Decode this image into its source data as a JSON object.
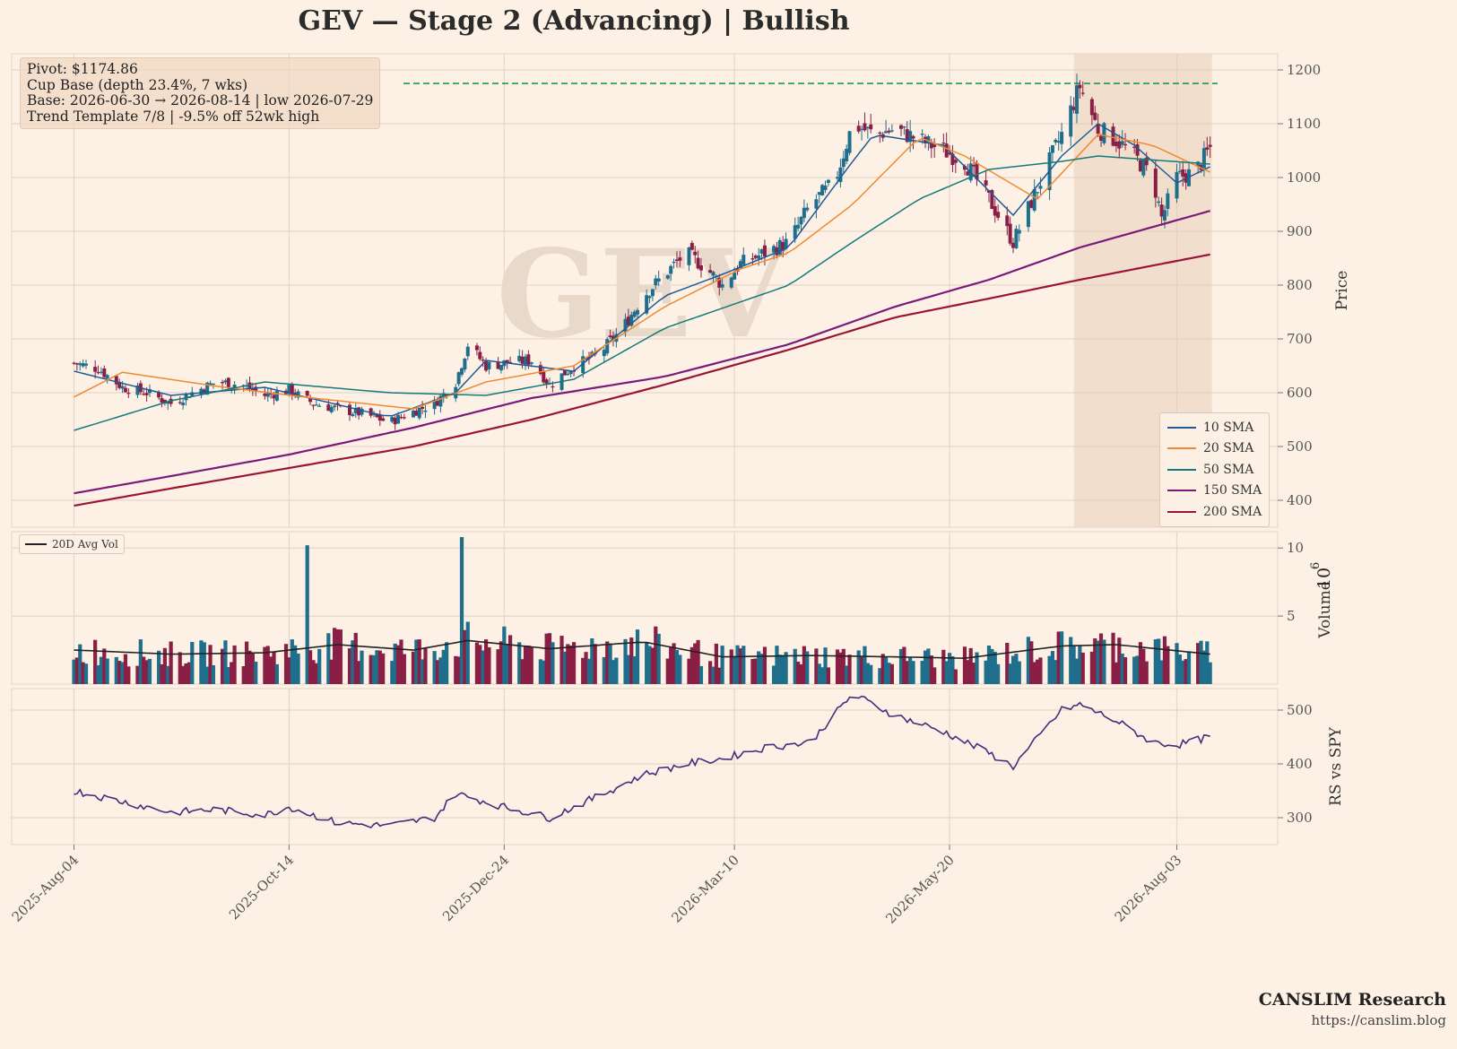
{
  "title": "GEV  —  Stage 2 (Advancing)  |  Bullish",
  "watermark": "GEV",
  "annotation": {
    "pivot": "Pivot: $1174.86",
    "base_type": "Cup Base  (depth 23.4%, 7 wks)",
    "base_dates": "Base: 2026-06-30 → 2026-08-14  |  low 2026-07-29",
    "trend": "Trend Template 7/8  |  -9.5% off 52wk high"
  },
  "branding": {
    "name": "CANSLIM Research",
    "url": "https://canslim.blog"
  },
  "colors": {
    "up": "#1f6e8c",
    "down": "#8a1f45",
    "pivot": "#1a9a4a",
    "base_shade": "#e8cdb8"
  },
  "chart_data": [
    {
      "type": "candlestick",
      "ylabel": "Price",
      "ylim": [
        350,
        1230
      ],
      "yticks": [
        400,
        500,
        600,
        700,
        800,
        900,
        1000,
        1100,
        1200
      ],
      "xticks": [
        "2025-Aug-04",
        "2025-Oct-14",
        "2025-Dec-24",
        "2026-Mar-10",
        "2026-May-20",
        "2026-Aug-03"
      ],
      "pivot": 1174.86,
      "base_shade_dates": [
        "2026-06-30",
        "2026-08-14"
      ],
      "close_anchors": [
        [
          "2025-08-04",
          655
        ],
        [
          "2025-08-12",
          645
        ],
        [
          "2025-08-20",
          610
        ],
        [
          "2025-08-28",
          600
        ],
        [
          "2025-09-05",
          580
        ],
        [
          "2025-09-12",
          600
        ],
        [
          "2025-09-20",
          620
        ],
        [
          "2025-09-28",
          615
        ],
        [
          "2025-10-06",
          595
        ],
        [
          "2025-10-14",
          605
        ],
        [
          "2025-10-22",
          580
        ],
        [
          "2025-10-30",
          570
        ],
        [
          "2025-11-08",
          560
        ],
        [
          "2025-11-16",
          545
        ],
        [
          "2025-11-24",
          565
        ],
        [
          "2025-12-01",
          580
        ],
        [
          "2025-12-08",
          620
        ],
        [
          "2025-12-12",
          690
        ],
        [
          "2025-12-18",
          650
        ],
        [
          "2025-12-24",
          655
        ],
        [
          "2026-01-02",
          660
        ],
        [
          "2026-01-08",
          615
        ],
        [
          "2026-01-16",
          650
        ],
        [
          "2026-01-24",
          670
        ],
        [
          "2026-02-01",
          720
        ],
        [
          "2026-02-08",
          780
        ],
        [
          "2026-02-15",
          820
        ],
        [
          "2026-02-22",
          860
        ],
        [
          "2026-03-01",
          830
        ],
        [
          "2026-03-06",
          800
        ],
        [
          "2026-03-12",
          840
        ],
        [
          "2026-03-20",
          860
        ],
        [
          "2026-03-28",
          880
        ],
        [
          "2026-04-04",
          950
        ],
        [
          "2026-04-12",
          990
        ],
        [
          "2026-04-18",
          1100
        ],
        [
          "2026-04-25",
          1080
        ],
        [
          "2026-05-02",
          1090
        ],
        [
          "2026-05-10",
          1070
        ],
        [
          "2026-05-18",
          1050
        ],
        [
          "2026-05-25",
          1030
        ],
        [
          "2026-06-02",
          960
        ],
        [
          "2026-06-10",
          880
        ],
        [
          "2026-06-18",
          980
        ],
        [
          "2026-06-26",
          1080
        ],
        [
          "2026-07-02",
          1170
        ],
        [
          "2026-07-08",
          1090
        ],
        [
          "2026-07-14",
          1070
        ],
        [
          "2026-07-20",
          1040
        ],
        [
          "2026-07-26",
          1000
        ],
        [
          "2026-07-29",
          925
        ],
        [
          "2026-08-03",
          1000
        ],
        [
          "2026-08-09",
          1010
        ],
        [
          "2026-08-14",
          1055
        ]
      ],
      "sma": [
        {
          "name": "10 SMA",
          "color": "#1f5a96",
          "points": [
            [
              "2025-08-04",
              640
            ],
            [
              "2025-09-05",
              595
            ],
            [
              "2025-10-06",
              610
            ],
            [
              "2025-11-16",
              555
            ],
            [
              "2025-12-08",
              600
            ],
            [
              "2025-12-18",
              660
            ],
            [
              "2026-01-16",
              640
            ],
            [
              "2026-02-15",
              780
            ],
            [
              "2026-03-06",
              820
            ],
            [
              "2026-03-28",
              870
            ],
            [
              "2026-04-18",
              1030
            ],
            [
              "2026-04-25",
              1080
            ],
            [
              "2026-05-18",
              1060
            ],
            [
              "2026-06-10",
              930
            ],
            [
              "2026-06-26",
              1040
            ],
            [
              "2026-07-08",
              1100
            ],
            [
              "2026-07-20",
              1060
            ],
            [
              "2026-08-03",
              990
            ],
            [
              "2026-08-14",
              1020
            ]
          ]
        },
        {
          "name": "20 SMA",
          "color": "#f08a30",
          "points": [
            [
              "2025-08-04",
              592
            ],
            [
              "2025-08-20",
              638
            ],
            [
              "2025-09-20",
              612
            ],
            [
              "2025-10-22",
              590
            ],
            [
              "2025-11-24",
              570
            ],
            [
              "2025-12-18",
              620
            ],
            [
              "2026-01-16",
              650
            ],
            [
              "2026-02-15",
              760
            ],
            [
              "2026-03-12",
              830
            ],
            [
              "2026-03-28",
              860
            ],
            [
              "2026-04-18",
              950
            ],
            [
              "2026-05-10",
              1075
            ],
            [
              "2026-05-25",
              1040
            ],
            [
              "2026-06-18",
              960
            ],
            [
              "2026-07-08",
              1080
            ],
            [
              "2026-07-26",
              1060
            ],
            [
              "2026-08-14",
              1010
            ]
          ]
        },
        {
          "name": "50 SMA",
          "color": "#137a7a",
          "points": [
            [
              "2025-08-04",
              530
            ],
            [
              "2025-09-05",
              585
            ],
            [
              "2025-10-06",
              620
            ],
            [
              "2025-11-16",
              600
            ],
            [
              "2025-12-18",
              595
            ],
            [
              "2026-01-16",
              625
            ],
            [
              "2026-02-15",
              720
            ],
            [
              "2026-03-28",
              800
            ],
            [
              "2026-04-18",
              880
            ],
            [
              "2026-05-10",
              960
            ],
            [
              "2026-06-02",
              1015
            ],
            [
              "2026-06-26",
              1030
            ],
            [
              "2026-07-08",
              1040
            ],
            [
              "2026-08-14",
              1025
            ]
          ]
        },
        {
          "name": "150 SMA",
          "color": "#7a1a7a",
          "points": [
            [
              "2025-08-04",
              413
            ],
            [
              "2025-09-05",
              445
            ],
            [
              "2025-10-14",
              485
            ],
            [
              "2025-11-24",
              535
            ],
            [
              "2026-01-02",
              590
            ],
            [
              "2026-02-15",
              630
            ],
            [
              "2026-03-28",
              690
            ],
            [
              "2026-05-02",
              760
            ],
            [
              "2026-06-02",
              810
            ],
            [
              "2026-07-02",
              870
            ],
            [
              "2026-08-14",
              938
            ]
          ]
        },
        {
          "name": "200 SMA",
          "color": "#9a1535",
          "points": [
            [
              "2025-08-04",
              390
            ],
            [
              "2025-09-05",
              422
            ],
            [
              "2025-10-14",
              460
            ],
            [
              "2025-11-24",
              500
            ],
            [
              "2026-01-02",
              550
            ],
            [
              "2026-02-15",
              615
            ],
            [
              "2026-03-28",
              680
            ],
            [
              "2026-05-02",
              740
            ],
            [
              "2026-06-02",
              775
            ],
            [
              "2026-07-02",
              810
            ],
            [
              "2026-08-14",
              857
            ]
          ]
        }
      ]
    },
    {
      "type": "bar",
      "ylabel": "Volume",
      "unit": "10",
      "unit_exp": "6",
      "ylim": [
        0,
        11.2
      ],
      "yticks": [
        5,
        10
      ],
      "legend": "20D Avg Vol",
      "spikes": [
        [
          "2025-10-20",
          10.2
        ],
        [
          "2025-12-10",
          10.8
        ],
        [
          "2025-12-20",
          6.2
        ]
      ],
      "avg_points": [
        [
          "2025-08-04",
          2.5
        ],
        [
          "2025-09-05",
          2.2
        ],
        [
          "2025-10-06",
          2.3
        ],
        [
          "2025-10-30",
          2.9
        ],
        [
          "2025-11-24",
          2.5
        ],
        [
          "2025-12-12",
          3.2
        ],
        [
          "2026-01-08",
          2.6
        ],
        [
          "2026-02-08",
          3.1
        ],
        [
          "2026-03-06",
          2.0
        ],
        [
          "2026-04-04",
          2.1
        ],
        [
          "2026-05-02",
          2.0
        ],
        [
          "2026-05-25",
          1.9
        ],
        [
          "2026-06-26",
          2.8
        ],
        [
          "2026-07-14",
          2.9
        ],
        [
          "2026-08-14",
          2.2
        ]
      ]
    },
    {
      "type": "line",
      "ylabel": "RS vs SPY",
      "ylim": [
        250,
        540
      ],
      "yticks": [
        300,
        400,
        500
      ],
      "color": "#4a2a7a",
      "points": [
        [
          "2025-08-04",
          350
        ],
        [
          "2025-08-20",
          330
        ],
        [
          "2025-09-05",
          310
        ],
        [
          "2025-09-20",
          315
        ],
        [
          "2025-10-06",
          305
        ],
        [
          "2025-10-14",
          320
        ],
        [
          "2025-10-30",
          290
        ],
        [
          "2025-11-16",
          285
        ],
        [
          "2025-12-01",
          300
        ],
        [
          "2025-12-08",
          345
        ],
        [
          "2025-12-24",
          320
        ],
        [
          "2026-01-08",
          300
        ],
        [
          "2026-01-24",
          340
        ],
        [
          "2026-02-08",
          380
        ],
        [
          "2026-02-22",
          400
        ],
        [
          "2026-03-06",
          410
        ],
        [
          "2026-03-20",
          430
        ],
        [
          "2026-04-04",
          440
        ],
        [
          "2026-04-18",
          530
        ],
        [
          "2026-05-02",
          490
        ],
        [
          "2026-05-18",
          460
        ],
        [
          "2026-06-02",
          420
        ],
        [
          "2026-06-10",
          395
        ],
        [
          "2026-06-26",
          500
        ],
        [
          "2026-07-02",
          510
        ],
        [
          "2026-07-14",
          480
        ],
        [
          "2026-07-26",
          440
        ],
        [
          "2026-08-03",
          435
        ],
        [
          "2026-08-14",
          450
        ]
      ]
    }
  ]
}
